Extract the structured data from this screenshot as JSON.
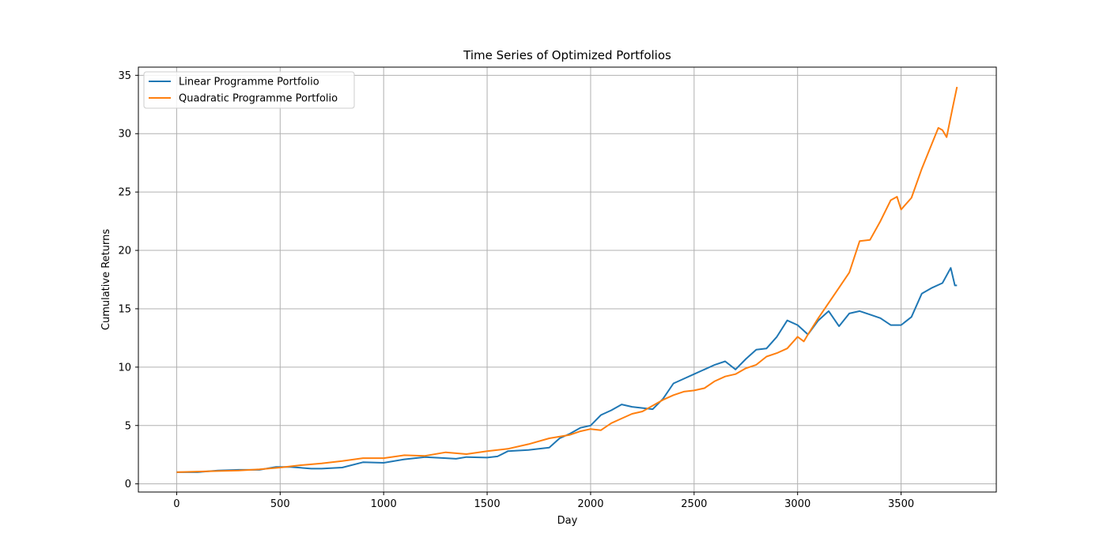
{
  "chart_data": {
    "type": "line",
    "title": "Time Series of Optimized Portfolios",
    "xlabel": "Day",
    "ylabel": "Cumulative Returns",
    "xlim": [
      -185,
      3960
    ],
    "ylim": [
      -0.7,
      35.7
    ],
    "xticks": [
      0,
      500,
      1000,
      1500,
      2000,
      2500,
      3000,
      3500
    ],
    "yticks": [
      0,
      5,
      10,
      15,
      20,
      25,
      30,
      35
    ],
    "grid": true,
    "legend_position": "upper left",
    "series": [
      {
        "name": "Linear Programme Portfolio",
        "color": "#1f77b4",
        "x": [
          0,
          100,
          200,
          300,
          400,
          480,
          550,
          650,
          700,
          800,
          900,
          1000,
          1100,
          1200,
          1300,
          1350,
          1400,
          1500,
          1550,
          1600,
          1700,
          1800,
          1850,
          1900,
          1950,
          2000,
          2050,
          2100,
          2150,
          2200,
          2250,
          2300,
          2350,
          2400,
          2450,
          2500,
          2550,
          2600,
          2650,
          2700,
          2750,
          2800,
          2850,
          2900,
          2950,
          3000,
          3050,
          3100,
          3150,
          3200,
          3250,
          3300,
          3350,
          3400,
          3450,
          3500,
          3550,
          3600,
          3650,
          3700,
          3740,
          3760,
          3770
        ],
        "values": [
          1.0,
          1.0,
          1.15,
          1.2,
          1.2,
          1.45,
          1.45,
          1.3,
          1.3,
          1.4,
          1.85,
          1.8,
          2.1,
          2.3,
          2.2,
          2.15,
          2.3,
          2.25,
          2.35,
          2.8,
          2.9,
          3.1,
          3.9,
          4.3,
          4.8,
          5.0,
          5.9,
          6.3,
          6.8,
          6.6,
          6.5,
          6.4,
          7.3,
          8.6,
          9.0,
          9.4,
          9.8,
          10.2,
          10.5,
          9.8,
          10.7,
          11.5,
          11.6,
          12.6,
          14.0,
          13.6,
          12.8,
          14.0,
          14.8,
          13.5,
          14.6,
          14.8,
          14.5,
          14.2,
          13.6,
          13.6,
          14.3,
          16.3,
          16.8,
          17.2,
          18.5,
          17.0,
          17.0
        ]
      },
      {
        "name": "Quadratic Programme Portfolio",
        "color": "#ff7f0e",
        "x": [
          0,
          100,
          200,
          300,
          400,
          500,
          600,
          700,
          800,
          900,
          1000,
          1100,
          1200,
          1300,
          1400,
          1500,
          1600,
          1700,
          1800,
          1900,
          1950,
          2000,
          2050,
          2100,
          2150,
          2200,
          2250,
          2300,
          2350,
          2400,
          2450,
          2500,
          2550,
          2600,
          2650,
          2700,
          2750,
          2800,
          2850,
          2900,
          2950,
          3000,
          3030,
          3050,
          3100,
          3150,
          3200,
          3250,
          3300,
          3350,
          3400,
          3450,
          3480,
          3500,
          3550,
          3600,
          3650,
          3680,
          3700,
          3720,
          3750,
          3770
        ],
        "values": [
          1.0,
          1.05,
          1.1,
          1.15,
          1.25,
          1.4,
          1.6,
          1.75,
          1.95,
          2.2,
          2.2,
          2.45,
          2.4,
          2.7,
          2.55,
          2.8,
          3.0,
          3.4,
          3.9,
          4.2,
          4.5,
          4.7,
          4.6,
          5.2,
          5.6,
          6.0,
          6.2,
          6.7,
          7.2,
          7.6,
          7.9,
          8.0,
          8.2,
          8.8,
          9.2,
          9.4,
          9.9,
          10.2,
          10.9,
          11.2,
          11.6,
          12.6,
          12.2,
          12.8,
          14.2,
          15.5,
          16.8,
          18.1,
          20.8,
          20.9,
          22.5,
          24.3,
          24.6,
          23.5,
          24.5,
          27.0,
          29.2,
          30.5,
          30.3,
          29.7,
          32.3,
          34.0
        ]
      }
    ]
  }
}
